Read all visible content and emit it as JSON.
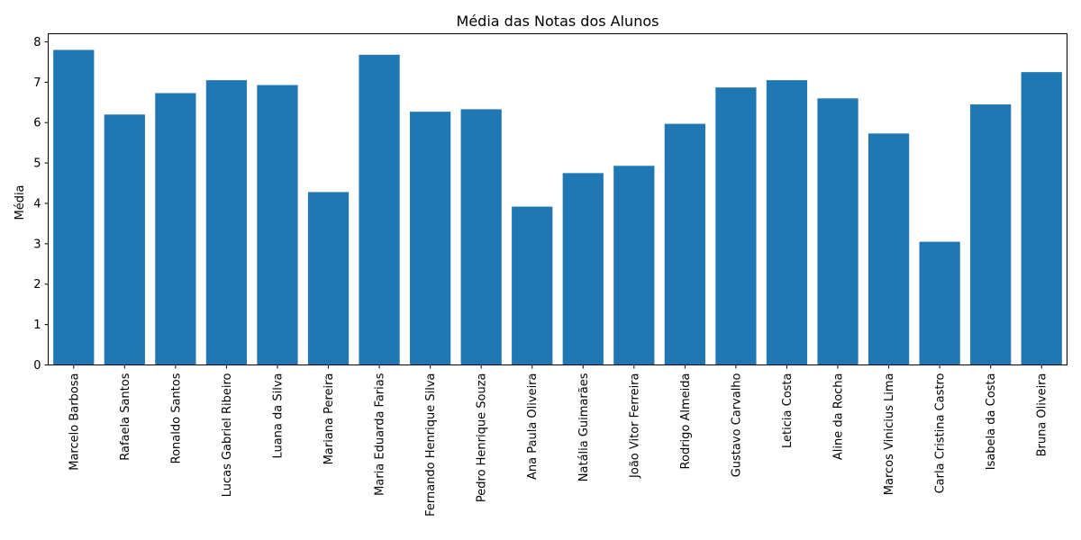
{
  "chart_data": {
    "type": "bar",
    "title": "Média das Notas dos Alunos",
    "xlabel": "",
    "ylabel": "Média",
    "ylim": [
      0,
      8.2
    ],
    "yticks": [
      0,
      1,
      2,
      3,
      4,
      5,
      6,
      7,
      8
    ],
    "grid": false,
    "bar_color": "#1f77b4",
    "categories": [
      "Marcelo Barbosa",
      "Rafaela Santos",
      "Ronaldo Santos",
      "Lucas Gabriel Ribeiro",
      "Luana da Silva",
      "Mariana Pereira",
      "Maria Eduarda Farias",
      "Fernando Henrique Silva",
      "Pedro Henrique Souza",
      "Ana Paula Oliveira",
      "Natália Guimarães",
      "João Vitor Ferreira",
      "Rodrigo Almeida",
      "Gustavo Carvalho",
      "Leticia Costa",
      "Aline da Rocha",
      "Marcos Vinicius Lima",
      "Carla Cristina Castro",
      "Isabela da Costa",
      "Bruna Oliveira"
    ],
    "values": [
      7.8,
      6.2,
      6.73,
      7.05,
      6.93,
      4.28,
      7.68,
      6.27,
      6.33,
      3.92,
      4.75,
      4.93,
      5.97,
      6.87,
      7.05,
      6.6,
      5.73,
      3.05,
      6.45,
      7.25
    ]
  }
}
